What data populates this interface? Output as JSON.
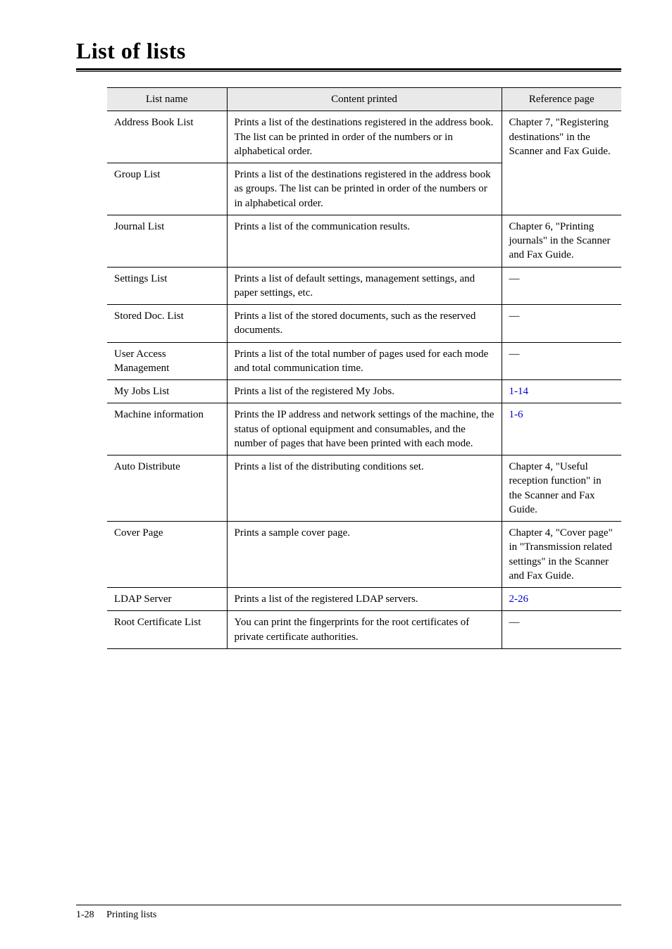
{
  "page": {
    "title": "List of lists",
    "footer_pagenum": "1-28",
    "footer_label": "Printing lists"
  },
  "table": {
    "headers": {
      "name": "List name",
      "content": "Content printed",
      "ref": "Reference page"
    },
    "rows": [
      {
        "name": "Address Book List",
        "content": "Prints a list of the destinations registered in the address book.  The list can be printed in order of the numbers or in alphabetical order.",
        "ref": "Chapter 7, \"Registering destinations\" in the Scanner and Fax Guide.",
        "ref_rowspan": 2
      },
      {
        "name": "Group List",
        "content": "Prints a list of the destinations registered in the address book as groups.  The list can be printed in order of the numbers or in alphabetical order."
      },
      {
        "name": "Journal List",
        "content": "Prints a list of the communication results.",
        "ref": "Chapter 6, \"Printing journals\" in the Scanner and Fax Guide."
      },
      {
        "name": "Settings List",
        "content": "Prints a list of default settings, management settings, and paper settings, etc.",
        "ref": "—"
      },
      {
        "name": "Stored Doc. List",
        "content": "Prints a list of the stored documents, such as the reserved documents.",
        "ref": "—"
      },
      {
        "name": "User Access Management",
        "content": "Prints a list of the total number of pages used for each mode and total communication time.",
        "ref": "—"
      },
      {
        "name": "My Jobs List",
        "content": "Prints a list of the registered My Jobs.",
        "ref": "1-14",
        "ref_is_link": true
      },
      {
        "name": "Machine information",
        "content": "Prints the IP address and network settings of the machine, the status of optional equipment and consumables, and the number of pages that have been printed with each mode.",
        "ref": "1-6",
        "ref_is_link": true
      },
      {
        "name": "Auto Distribute",
        "content": "Prints a list of the distributing conditions set.",
        "ref": "Chapter 4, \"Useful reception function\" in the Scanner and Fax Guide."
      },
      {
        "name": "Cover Page",
        "content": "Prints a sample cover page.",
        "ref": "Chapter 4, \"Cover page\" in \"Transmission related settings\" in the Scanner and Fax Guide."
      },
      {
        "name": "LDAP Server",
        "content": "Prints a list of the registered LDAP servers.",
        "ref": "2-26",
        "ref_is_link": true
      },
      {
        "name": "Root Certificate List",
        "content": "You can print the fingerprints for the root certificates of private certificate authorities.",
        "ref": "—"
      }
    ]
  }
}
